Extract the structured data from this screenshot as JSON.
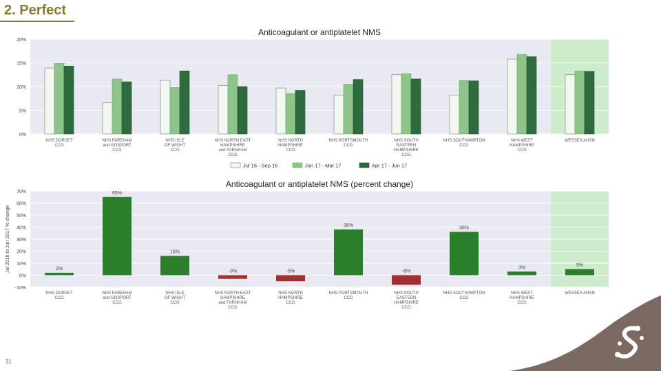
{
  "slide": {
    "title": "2. Perfect",
    "page_number": "31"
  },
  "colors": {
    "plot_bg": "#e9e9f1",
    "highlight_bg": "#cdeccc",
    "s1": "#f2f7f0",
    "s2": "#8cc48a",
    "s3": "#2e6b3f",
    "pos": "#2b7f2b",
    "neg": "#a33030",
    "corner": "#7a6a62"
  },
  "chart_data": [
    {
      "type": "bar",
      "title": "Anticoagulant or antiplatelet NMS",
      "xlabel": "",
      "ylabel": "",
      "ylim": [
        0,
        20
      ],
      "yticks": [
        "0%",
        "5%",
        "10%",
        "15%",
        "20%"
      ],
      "categories": [
        [
          "NHS DORSET",
          "CCG"
        ],
        [
          "NHS FAREHAM",
          "and GOSPORT",
          "CCG"
        ],
        [
          "NHS ISLE",
          "OF WIGHT",
          "CCG"
        ],
        [
          "NHS NORTH EAST",
          "HAMPSHIRE",
          "and FARNHAM",
          "CCG"
        ],
        [
          "NHS NORTH",
          "HAMPSHIRE",
          "CCG"
        ],
        [
          "NHS PORTSMOUTH",
          "CCG"
        ],
        [
          "NHS SOUTH",
          "EASTERN",
          "HAMPSHIRE",
          "CCG"
        ],
        [
          "NHS SOUTHAMPTON",
          "CCG"
        ],
        [
          "NHS WEST",
          "HAMPSHIRE",
          "CCG"
        ],
        [
          "WESSEX AHSN"
        ]
      ],
      "highlight_index": 9,
      "series": [
        {
          "name": "Jul 16 - Sep 16",
          "values": [
            13.9,
            6.6,
            11.3,
            10.2,
            9.7,
            8.2,
            12.5,
            8.2,
            15.8,
            12.5
          ]
        },
        {
          "name": "Jan 17 - Mar 17",
          "values": [
            14.9,
            11.6,
            9.8,
            12.5,
            8.5,
            10.5,
            12.7,
            11.3,
            16.8,
            13.3
          ]
        },
        {
          "name": "Apr 17 - Jun 17",
          "values": [
            14.3,
            11.0,
            13.3,
            10.0,
            9.2,
            11.5,
            11.6,
            11.2,
            16.3,
            13.2
          ]
        }
      ],
      "legend": "bottom-center"
    },
    {
      "type": "bar",
      "title": "Anticoagulant or antiplatelet NMS (percent change)",
      "xlabel": "",
      "ylabel": "Jul 2016 to Jun 2017 % change",
      "ylim": [
        -10,
        70
      ],
      "yticks": [
        "-10%",
        "0%",
        "10%",
        "20%",
        "30%",
        "40%",
        "50%",
        "60%",
        "70%"
      ],
      "categories": [
        [
          "NHS DORSET",
          "CCG"
        ],
        [
          "NHS FAREHAM",
          "and GOSPORT",
          "CCG"
        ],
        [
          "NHS ISLE",
          "OF WIGHT",
          "CCG"
        ],
        [
          "NHS NORTH EAST",
          "HAMPSHIRE",
          "and FARNHAM",
          "CCG"
        ],
        [
          "NHS NORTH",
          "HAMPSHIRE",
          "CCG"
        ],
        [
          "NHS PORTSMOUTH",
          "CCG"
        ],
        [
          "NHS SOUTH",
          "EASTERN",
          "HAMPSHIRE",
          "CCG"
        ],
        [
          "NHS SOUTHAMPTON",
          "CCG"
        ],
        [
          "NHS WEST",
          "HAMPSHIRE",
          "CCG"
        ],
        [
          "WESSEX AHSN"
        ]
      ],
      "highlight_index": 9,
      "values": [
        2,
        65,
        16,
        -3,
        -5,
        38,
        -8,
        36,
        3,
        5
      ],
      "data_labels": [
        "2%",
        "65%",
        "16%",
        "-3%",
        "-5%",
        "38%",
        "-8%",
        "36%",
        "3%",
        "5%"
      ]
    }
  ]
}
